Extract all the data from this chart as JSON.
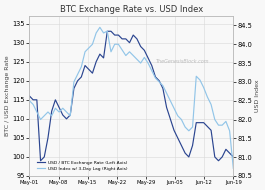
{
  "title": "BTC Exchange Rate vs. USD Index",
  "watermark": "TheGenesisBlock.com",
  "ylabel_left": "BTC / USD Exchange Rate",
  "ylabel_right": "USD Index",
  "ylim_left": [
    95,
    137
  ],
  "ylim_right": [
    80.5,
    84.75
  ],
  "yticks_left": [
    95,
    100,
    105,
    110,
    115,
    120,
    125,
    130,
    135
  ],
  "yticks_right": [
    80.5,
    81.0,
    81.5,
    82.0,
    82.5,
    83.0,
    83.5,
    84.0,
    84.5
  ],
  "xtick_labels": [
    "May-01",
    "May-08",
    "May-15",
    "May-22",
    "May-29",
    "Jun-05",
    "Jun-12",
    "Jun-19"
  ],
  "legend_btc": "USD / BTC Exchange Rate (Left Axis)",
  "legend_usd": "USD Index w/ 3-Day Lag (Right Axis)",
  "btc_color": "#2B4590",
  "usd_color": "#92C5E8",
  "background_color": "#f8f8f8",
  "grid_color": "#d8d8d8",
  "btc_data": [
    116,
    115,
    115,
    99,
    100,
    105,
    112,
    115,
    113,
    111,
    110,
    111,
    118,
    120,
    121,
    124,
    123,
    122,
    125,
    127,
    126,
    133,
    133,
    132,
    132,
    131,
    131,
    130,
    132,
    131,
    129,
    128,
    126,
    124,
    121,
    120,
    118,
    113,
    110,
    107,
    105,
    103,
    101,
    100,
    103,
    109,
    109,
    109,
    108,
    107,
    100,
    99,
    100,
    102,
    101,
    100
  ],
  "usd_data": [
    82.5,
    82.4,
    82.2,
    82.0,
    82.1,
    82.2,
    82.1,
    82.3,
    82.2,
    82.3,
    82.2,
    82.1,
    83.0,
    83.2,
    83.4,
    83.8,
    83.9,
    84.0,
    84.3,
    84.45,
    84.3,
    84.35,
    83.8,
    84.0,
    84.0,
    83.85,
    83.7,
    83.8,
    83.7,
    83.6,
    83.5,
    83.65,
    83.5,
    83.3,
    83.1,
    83.0,
    82.9,
    82.7,
    82.5,
    82.3,
    82.1,
    82.0,
    81.8,
    81.7,
    81.8,
    83.15,
    83.05,
    82.85,
    82.6,
    82.4,
    82.0,
    81.85,
    81.85,
    81.95,
    81.7,
    80.7
  ]
}
